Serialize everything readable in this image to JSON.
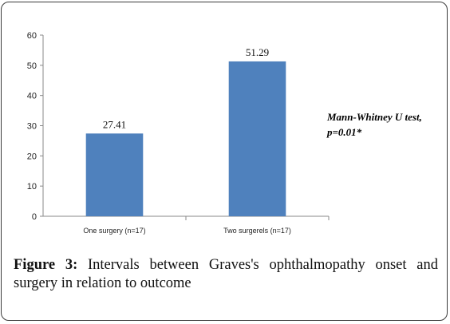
{
  "chart_data": {
    "type": "bar",
    "categories": [
      "One surgery (n=17)",
      "Two surgerels (n=17)"
    ],
    "values": [
      27.41,
      51.29
    ],
    "value_labels": [
      "27.41",
      "51.29"
    ],
    "title": "",
    "xlabel": "",
    "ylabel": "",
    "ylim": [
      0,
      60
    ],
    "yticks": [
      0,
      10,
      20,
      30,
      40,
      50,
      60
    ],
    "grid": false,
    "bar_color": "#4f81bd"
  },
  "annotation": {
    "line1": "Mann-Whitney U test,",
    "line2": "p=0.01*"
  },
  "caption": {
    "figure_label": "Figure 3:",
    "text": " Intervals between Graves's ophthalmopathy onset and surgery in relation to outcome"
  }
}
